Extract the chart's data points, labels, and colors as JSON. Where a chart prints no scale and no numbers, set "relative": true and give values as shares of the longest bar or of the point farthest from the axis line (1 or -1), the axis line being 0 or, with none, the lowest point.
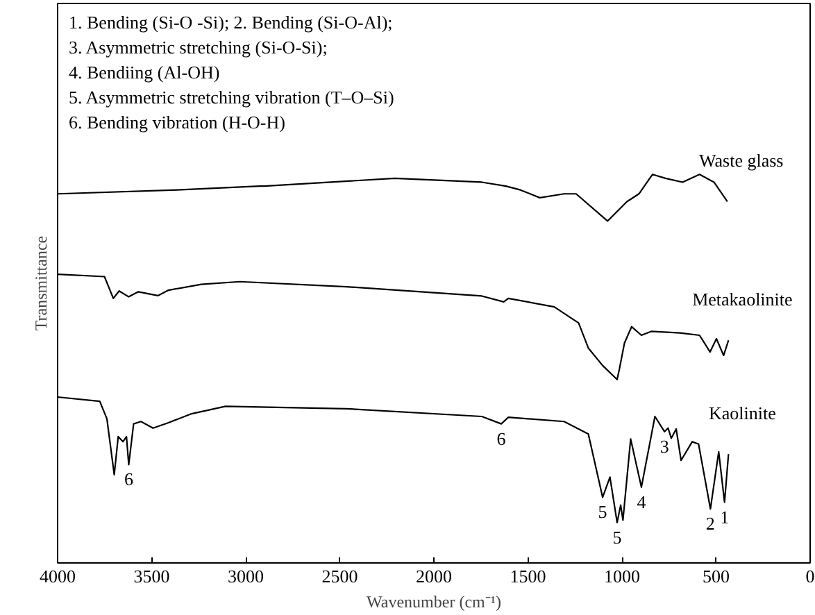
{
  "chart_data": {
    "type": "line",
    "relative": true,
    "xlabel": "Wavenumber (cm⁻¹)",
    "ylabel": "Transmittance",
    "xlim": [
      4000,
      0
    ],
    "xticks": [
      0,
      500,
      1000,
      1500,
      2000,
      2500,
      3000,
      3500,
      4000
    ],
    "grid": false,
    "marker": "none",
    "line_style": "solid",
    "series": [
      {
        "name": "Waste glass",
        "color": "#000000",
        "x": [
          4000,
          3365,
          2927,
          2902,
          2208,
          1745,
          1617,
          1540,
          1437,
          1308,
          1244,
          1077,
          974,
          910,
          838,
          769,
          678,
          588,
          511,
          440
        ],
        "values": [
          0.95,
          0.96,
          0.97,
          0.97,
          0.99,
          0.98,
          0.97,
          0.96,
          0.94,
          0.95,
          0.95,
          0.88,
          0.93,
          0.95,
          1.0,
          0.99,
          0.98,
          1.0,
          0.98,
          0.93
        ]
      },
      {
        "name": "Metakaolinite",
        "color": "#000000",
        "x": [
          4000,
          3751,
          3704,
          3673,
          3622,
          3571,
          3467,
          3411,
          3236,
          3031,
          2465,
          1745,
          1629,
          1604,
          1360,
          1257,
          1231,
          1179,
          1103,
          1026,
          1013,
          987,
          949,
          897,
          845,
          692,
          588,
          532,
          498,
          460,
          434
        ],
        "values": [
          0.743,
          0.737,
          0.681,
          0.7,
          0.685,
          0.698,
          0.688,
          0.702,
          0.717,
          0.724,
          0.711,
          0.687,
          0.672,
          0.681,
          0.659,
          0.626,
          0.618,
          0.553,
          0.508,
          0.472,
          0.501,
          0.566,
          0.608,
          0.586,
          0.596,
          0.592,
          0.586,
          0.543,
          0.577,
          0.534,
          0.573
        ]
      },
      {
        "name": "Kaolinite",
        "color": "#000000",
        "x": [
          4000,
          3776,
          3738,
          3699,
          3678,
          3653,
          3634,
          3622,
          3596,
          3557,
          3493,
          3416,
          3288,
          3108,
          2465,
          1745,
          1642,
          1604,
          1308,
          1179,
          1103,
          1064,
          1026,
          1007,
          995,
          954,
          897,
          825,
          774,
          755,
          738,
          712,
          686,
          627,
          593,
          530,
          486,
          455,
          434
        ],
        "values": [
          0.427,
          0.416,
          0.371,
          0.227,
          0.325,
          0.312,
          0.325,
          0.253,
          0.358,
          0.364,
          0.347,
          0.36,
          0.384,
          0.403,
          0.397,
          0.377,
          0.358,
          0.375,
          0.364,
          0.332,
          0.169,
          0.221,
          0.104,
          0.149,
          0.11,
          0.319,
          0.195,
          0.377,
          0.338,
          0.347,
          0.321,
          0.345,
          0.264,
          0.312,
          0.306,
          0.139,
          0.286,
          0.156,
          0.28
        ]
      }
    ],
    "annotations": [
      "1. Bending (Si-O -Si); 2. Bending (Si-O-Al);",
      "3. Asymmetric stretching (Si-O-Si);",
      "4. Bendiing (Al-OH)",
      "5. Asymmetric stretching vibration (T–O–Si)",
      "6. Bending vibration (H-O-H)",
      {
        "text": "6",
        "x": 3622,
        "y": 0.253
      },
      {
        "text": "6",
        "x": 1642,
        "y": 0.358
      },
      {
        "text": "5",
        "x": 1103,
        "y": 0.169
      },
      {
        "text": "5",
        "x": 1026,
        "y": 0.104
      },
      {
        "text": "4",
        "x": 897,
        "y": 0.195
      },
      {
        "text": "3",
        "x": 774,
        "y": 0.338
      },
      {
        "text": "2",
        "x": 530,
        "y": 0.139
      },
      {
        "text": "1",
        "x": 455,
        "y": 0.156
      }
    ]
  }
}
